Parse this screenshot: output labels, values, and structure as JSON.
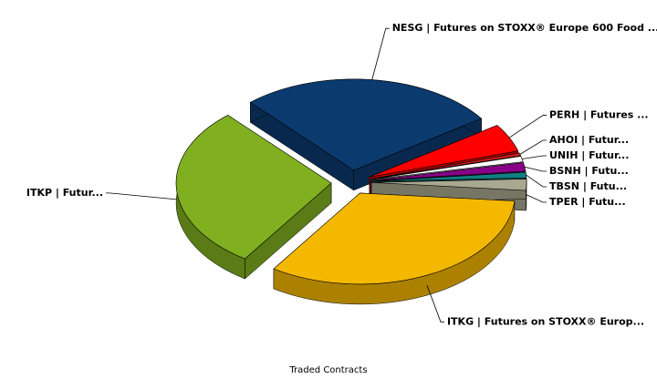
{
  "chart_data": {
    "type": "pie",
    "title": "Traded Contracts",
    "categories": [
      "TPER | Futu...",
      "TBSN | Futu...",
      "BSNH | Futu...",
      "UNIH | Futur...",
      "AHOI | Futur...",
      "PERH | Futures ...",
      "NESG | Futures on STOXX® Europe 600 Food ...",
      "ITKP | Futur...",
      "ITKG | Futures on STOXX® Europ..."
    ],
    "values": [
      2,
      1,
      1.5,
      1,
      0.5,
      5,
      27,
      29,
      33
    ],
    "colors": [
      "#a8a890",
      "#108080",
      "#880088",
      "#ffffff",
      "#cc2020",
      "#ff0000",
      "#0b3a6e",
      "#80b020",
      "#f5b800"
    ]
  }
}
